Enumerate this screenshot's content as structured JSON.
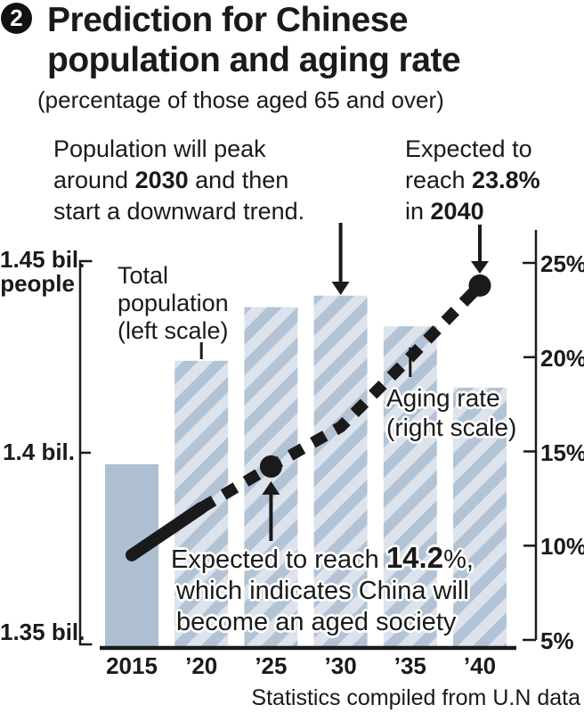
{
  "title": {
    "badge_number": "2",
    "line1": "Prediction for Chinese",
    "line2": "population and aging rate",
    "subtitle": "(percentage of those aged 65 and over)"
  },
  "annotations": {
    "peak": {
      "l1": "Population will peak",
      "l2a": "around ",
      "l2b": "2030",
      "l2c": " and then",
      "l3": "start a downward trend."
    },
    "reach2040": {
      "l1": "Expected to",
      "l2a": "reach ",
      "l2b": "23.8%",
      "l3a": "in ",
      "l3b": "2040"
    },
    "aged_society": {
      "l1a": "Expected to reach ",
      "l1b": "14.2",
      "l1c": "%,",
      "l2": "which indicates China will",
      "l3": "become an aged society"
    }
  },
  "series_labels": {
    "population": {
      "l1": "Total",
      "l2": "population",
      "l3": "(left scale)"
    },
    "aging": {
      "l1": "Aging rate",
      "l2": "(right scale)"
    }
  },
  "left_axis_labels": {
    "top_line1": "1.45 bil.",
    "top_line2": "people",
    "mid": "1.4 bil.",
    "bottom": "1.35 bil."
  },
  "footer": {
    "source": "Statistics compiled from U.N data"
  },
  "colors": {
    "bar_solid": "#aebfd2",
    "stripe_light": "#dce3ec",
    "stripe_dark": "#b2c3d5",
    "ink": "#1a1a1a",
    "halo": "#ffffff"
  },
  "chart_data": {
    "type": "bar+line combo",
    "title": "Prediction for Chinese population and aging rate",
    "subtitle": "(percentage of those aged 65 and over)",
    "categories": [
      "2015",
      "’20",
      "’25",
      "’30",
      "’35",
      "’40"
    ],
    "series": [
      {
        "name": "Total population (left scale)",
        "type": "bar",
        "axis": "left",
        "unit": "bil. people",
        "values": [
          1.397,
          1.424,
          1.438,
          1.441,
          1.433,
          1.417
        ]
      },
      {
        "name": "Aging rate (right scale)",
        "type": "line",
        "axis": "right",
        "unit": "%",
        "values": [
          9.5,
          12.0,
          14.2,
          16.3,
          20.0,
          23.8
        ],
        "solid_until_index": 1,
        "marker_indices": [
          2,
          5
        ]
      }
    ],
    "left_axis": {
      "range": [
        1.35,
        1.45
      ],
      "ticks": [
        1.35,
        1.4,
        1.45
      ],
      "tick_labels": [
        "1.35 bil.",
        "1.4 bil.",
        "1.45 bil. people"
      ]
    },
    "right_axis": {
      "range": [
        5,
        25
      ],
      "ticks": [
        5,
        10,
        15,
        20,
        25
      ],
      "tick_labels": [
        "5%",
        "10%",
        "15%",
        "20%",
        "25%"
      ]
    },
    "callouts": [
      "Population will peak around 2030 and then start a downward trend.",
      "Expected to reach 23.8% in 2040",
      "Expected to reach 14.2%, which indicates China will become an aged society"
    ],
    "source": "Statistics compiled from U.N data",
    "legend_position": "inline-labels",
    "grid": false
  }
}
